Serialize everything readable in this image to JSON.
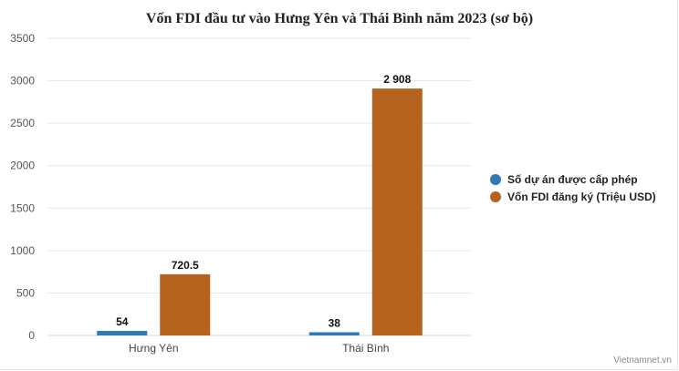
{
  "chart_data": {
    "type": "bar",
    "title": "Vốn FDI đầu tư vào Hưng Yên và Thái Bình năm 2023 (sơ bộ)",
    "categories": [
      "Hưng Yên",
      "Thái Bình"
    ],
    "series": [
      {
        "name": "Số dự án được cấp phép",
        "values": [
          54,
          38
        ],
        "labels": [
          "54",
          "38"
        ],
        "color": "#2f7ab7"
      },
      {
        "name": "Vốn FDI đăng ký (Triệu USD)",
        "values": [
          720.5,
          2908
        ],
        "labels": [
          "720.5",
          "2 908"
        ],
        "color": "#b5621f"
      }
    ],
    "ylim": [
      0,
      3500
    ],
    "yticks": [
      0,
      500,
      1000,
      1500,
      2000,
      2500,
      3000,
      3500
    ],
    "grid": true,
    "legend_position": "right"
  },
  "credit": "Vietnamnet.vn"
}
